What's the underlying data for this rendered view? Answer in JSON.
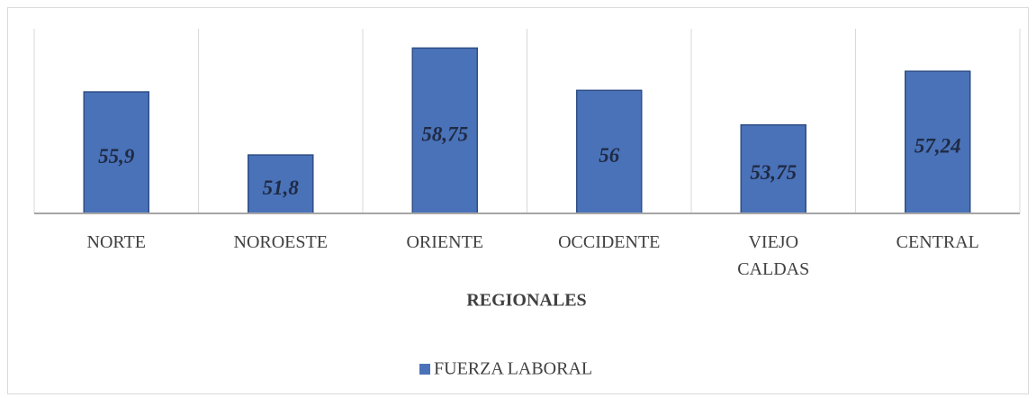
{
  "chart_data": {
    "type": "bar",
    "x_label": "REGIONALES",
    "categories": [
      "NORTE",
      "NOROESTE",
      "ORIENTE",
      "OCCIDENTE",
      "VIEJO CALDAS",
      "CENTRAL"
    ],
    "series": [
      {
        "name": "FUERZA LABORAL",
        "color": "#4a72b8",
        "values": [
          55.9,
          51.8,
          58.75,
          56,
          53.75,
          57.24
        ],
        "value_labels": [
          "55,9",
          "51,8",
          "58,75",
          "56",
          "53,75",
          "57,24"
        ]
      }
    ],
    "ylim": [
      48,
      60
    ],
    "legend": "bottom"
  }
}
